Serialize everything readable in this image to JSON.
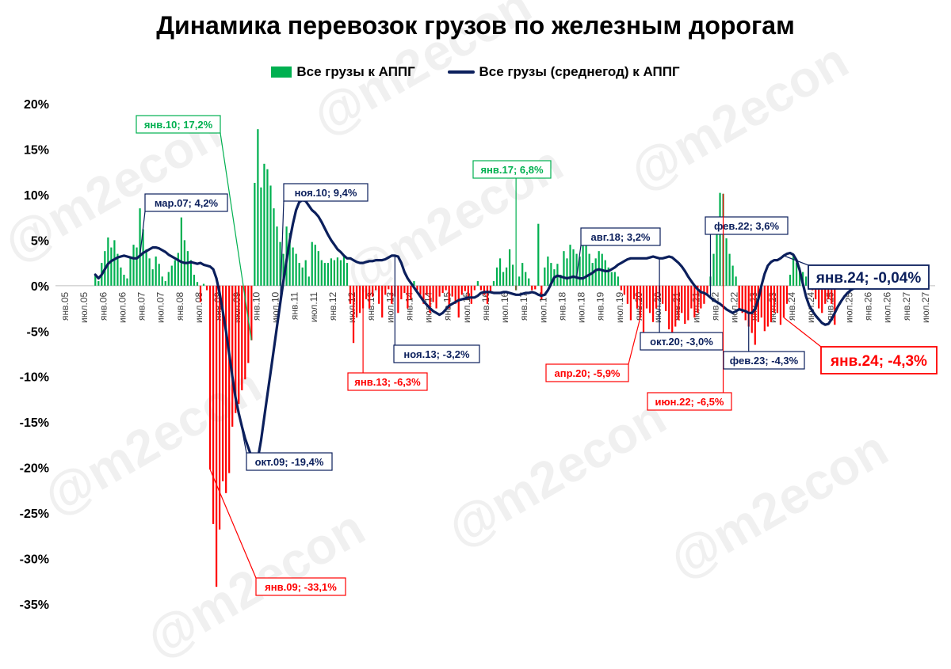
{
  "chart_data": {
    "type": "bar",
    "title": "Динамика перевозок грузов по железным дорогам",
    "legend": [
      "Все грузы к АППГ",
      "Все грузы (среднегод) к АППГ"
    ],
    "legend_position": "top",
    "grid": false,
    "ylim": [
      -35,
      20
    ],
    "ylabels": [
      "20%",
      "15%",
      "10%",
      "5%",
      "0%",
      "-5%",
      "-10%",
      "-15%",
      "-20%",
      "-25%",
      "-30%",
      "-35%"
    ],
    "xlabels": [
      "янв.05",
      "июл.05",
      "янв.06",
      "июл.06",
      "янв.07",
      "июл.07",
      "янв.08",
      "июл.08",
      "янв.09",
      "июл.09",
      "янв.10",
      "июл.10",
      "янв.11",
      "июл.11",
      "янв.12",
      "июл.12",
      "янв.13",
      "июл.13",
      "янв.14",
      "июл.14",
      "янв.15",
      "июл.15",
      "янв.16",
      "июл.16",
      "янв.17",
      "июл.17",
      "янв.18",
      "июл.18",
      "янв.19",
      "июл.19",
      "янв.20",
      "июл.20",
      "янв.21",
      "июл.21",
      "янв.22",
      "июл.22",
      "янв.23",
      "июл.23",
      "янв.24",
      "июл.24",
      "янв.25",
      "июл.25",
      "янв.26",
      "июл.26",
      "янв.27",
      "июл.27"
    ],
    "x_start": "2006-01",
    "series": [
      {
        "name": "Все грузы к АППГ",
        "type": "bar",
        "positive_color": "#00b050",
        "negative_color": "#ff0000",
        "values": [
          1.2,
          0.5,
          2.5,
          3.8,
          5.3,
          4.2,
          5.0,
          3.5,
          2.0,
          1.2,
          0.8,
          3.0,
          4.5,
          4.2,
          8.5,
          6.2,
          4.0,
          3.0,
          1.8,
          3.2,
          2.4,
          1.0,
          0.5,
          1.5,
          2.2,
          2.8,
          3.6,
          7.5,
          5.0,
          3.8,
          2.8,
          1.2,
          0.4,
          -1.8,
          0.2,
          -0.5,
          -20.2,
          -26.2,
          -33.1,
          -26.8,
          -21.5,
          -22.8,
          -20.6,
          -15.5,
          -14.0,
          -13.0,
          -11.5,
          -10.3,
          -8.5,
          -6.0,
          11.3,
          17.2,
          10.8,
          13.4,
          12.8,
          11.0,
          8.5,
          6.5,
          4.8,
          3.5,
          6.5,
          5.8,
          4.2,
          3.5,
          2.5,
          2.0,
          2.8,
          1.0,
          4.8,
          4.5,
          3.8,
          2.8,
          2.5,
          2.5,
          3.0,
          2.8,
          3.1,
          2.8,
          3.3,
          2.5,
          -2.0,
          -6.3,
          -3.5,
          -3.0,
          -2.5,
          -1.5,
          -2.5,
          -1.2,
          -0.5,
          -2.0,
          -3.5,
          -1.0,
          -0.4,
          -2.0,
          -1.2,
          -3.0,
          -1.5,
          -0.8,
          -2.5,
          -1.5,
          0.5,
          -0.5,
          -1.0,
          -2.0,
          -1.0,
          -3.0,
          -1.8,
          -2.5,
          -1.2,
          -0.8,
          -0.5,
          -2.5,
          -1.2,
          -2.0,
          -3.5,
          -1.0,
          -0.6,
          -1.5,
          -2.0,
          -0.5,
          0.5,
          -0.5,
          -1.0,
          -2.0,
          -0.6,
          0.5,
          2.0,
          3.0,
          1.5,
          2.0,
          4.0,
          2.3,
          -0.5,
          1.0,
          2.5,
          1.5,
          0.8,
          -0.5,
          -0.4,
          6.8,
          -1.5,
          2.0,
          3.2,
          2.5,
          1.8,
          2.4,
          1.2,
          3.8,
          3.0,
          4.5,
          4.0,
          3.5,
          3.2,
          4.8,
          4.5,
          3.5,
          2.5,
          3.0,
          3.8,
          3.5,
          2.8,
          2.0,
          1.5,
          1.5,
          1.0,
          -0.5,
          -1.0,
          -2.0,
          -3.8,
          -1.5,
          -2.5,
          -3.5,
          -5.1,
          -2.5,
          -3.0,
          -4.0,
          -2.5,
          -1.5,
          -2.0,
          -2.8,
          -4.8,
          -5.9,
          -4.5,
          -3.8,
          -3.0,
          -4.2,
          -3.8,
          -2.5,
          -3.5,
          -3.0,
          -2.5,
          -2.0,
          -1.0,
          1.0,
          3.5,
          6.8,
          10.2,
          10.1,
          5.2,
          3.5,
          2.2,
          1.0,
          -2.5,
          -3.0,
          -3.8,
          -4.5,
          -5.2,
          -6.5,
          -4.0,
          -3.5,
          -5.0,
          -4.5,
          -4.0,
          -3.0,
          -3.0,
          -4.3,
          -3.5,
          -2.0,
          1.2,
          3.3,
          2.5,
          2.0,
          1.5,
          1.0,
          0.3,
          -0.5,
          -1.5,
          -2.5,
          -3.0,
          -2.0,
          -1.5,
          -2.0,
          -4.3
        ]
      },
      {
        "name": "Все грузы (среднегод) к АППГ",
        "type": "line",
        "color": "#0b1f5c",
        "values": [
          1.2,
          0.8,
          1.2,
          1.8,
          2.4,
          2.7,
          2.9,
          3.1,
          3.2,
          3.3,
          3.2,
          3.1,
          3.0,
          3.0,
          3.3,
          3.6,
          3.8,
          4.0,
          4.2,
          4.2,
          4.1,
          3.9,
          3.7,
          3.4,
          3.2,
          3.0,
          2.8,
          2.6,
          2.5,
          2.5,
          2.6,
          2.5,
          2.4,
          2.5,
          2.3,
          2.2,
          2.1,
          1.8,
          0.8,
          -0.8,
          -2.8,
          -5.0,
          -7.5,
          -10.0,
          -12.3,
          -14.0,
          -15.5,
          -16.8,
          -17.8,
          -18.8,
          -19.4,
          -19.0,
          -17.0,
          -14.5,
          -12.0,
          -9.5,
          -7.0,
          -4.5,
          -2.0,
          0.5,
          2.8,
          5.0,
          6.8,
          8.3,
          9.2,
          9.4,
          9.3,
          8.8,
          8.3,
          8.0,
          7.6,
          7.0,
          6.3,
          5.6,
          5.0,
          4.5,
          4.0,
          3.7,
          3.3,
          3.0,
          3.0,
          2.8,
          2.6,
          2.5,
          2.5,
          2.6,
          2.7,
          2.7,
          2.8,
          2.8,
          2.8,
          2.9,
          3.1,
          3.3,
          3.3,
          3.2,
          2.5,
          1.5,
          0.8,
          0.3,
          -0.2,
          -0.7,
          -1.2,
          -1.7,
          -2.1,
          -2.5,
          -2.8,
          -3.0,
          -3.2,
          -3.0,
          -2.6,
          -2.2,
          -2.0,
          -1.8,
          -1.6,
          -1.5,
          -1.4,
          -1.3,
          -1.3,
          -1.3,
          -1.1,
          -0.8,
          -0.7,
          -0.7,
          -0.7,
          -0.8,
          -0.8,
          -0.8,
          -0.7,
          -0.7,
          -0.8,
          -0.9,
          -1.0,
          -1.0,
          -0.9,
          -0.8,
          -0.8,
          -0.7,
          -0.8,
          -1.0,
          -1.1,
          -1.0,
          -0.5,
          0.2,
          0.9,
          1.1,
          1.0,
          0.9,
          0.8,
          0.9,
          1.0,
          0.9,
          0.8,
          0.8,
          1.0,
          1.2,
          1.4,
          1.7,
          1.8,
          1.7,
          1.6,
          1.6,
          1.8,
          2.0,
          2.3,
          2.5,
          2.7,
          2.9,
          3.0,
          3.0,
          3.0,
          3.0,
          3.0,
          3.0,
          3.1,
          3.2,
          3.1,
          3.0,
          3.0,
          3.1,
          3.2,
          3.1,
          2.8,
          2.5,
          2.1,
          1.6,
          1.0,
          0.5,
          0.0,
          -0.4,
          -0.7,
          -0.8,
          -1.0,
          -1.3,
          -1.6,
          -1.8,
          -2.0,
          -2.3,
          -2.6,
          -2.8,
          -3.0,
          -2.8,
          -2.6,
          -2.7,
          -2.8,
          -3.0,
          -3.0,
          -2.6,
          -1.5,
          0.0,
          1.3,
          2.2,
          2.6,
          2.8,
          2.8,
          3.0,
          3.3,
          3.5,
          3.6,
          3.4,
          2.8,
          1.7,
          0.2,
          -1.2,
          -2.2,
          -2.8,
          -3.3,
          -3.7,
          -4.1,
          -4.3,
          -4.2,
          -3.7,
          -3.0,
          -2.3,
          -1.7,
          -1.2,
          -0.8,
          -0.5,
          -0.3,
          -0.2,
          -0.1,
          0.0,
          0.0,
          -0.04
        ]
      }
    ],
    "annotations": [
      {
        "text": "янв.10; 17,2%",
        "series": 0,
        "index": 49,
        "color": "#00b050"
      },
      {
        "text": "мар.07; 4,2%",
        "series": 1,
        "index": 14,
        "color": "#0b1f5c"
      },
      {
        "text": "ноя.10; 9,4%",
        "series": 1,
        "index": 58,
        "color": "#0b1f5c"
      },
      {
        "text": "окт.09; -19,4%",
        "series": 1,
        "index": 45,
        "color": "#0b1f5c"
      },
      {
        "text": "янв.09; -33,1%",
        "series": 0,
        "index": 36,
        "color": "#ff0000"
      },
      {
        "text": "янв.13; -6,3%",
        "series": 0,
        "index": 84,
        "color": "#ff0000"
      },
      {
        "text": "ноя.13; -3,2%",
        "series": 1,
        "index": 94,
        "color": "#0b1f5c"
      },
      {
        "text": "янв.17; 6,8%",
        "series": 0,
        "index": 132,
        "color": "#00b050"
      },
      {
        "text": "авг.18; 3,2%",
        "series": 1,
        "index": 151,
        "color": "#0b1f5c"
      },
      {
        "text": "апр.20; -5,9%",
        "series": 0,
        "index": 171,
        "color": "#ff0000"
      },
      {
        "text": "окт.20; -3,0%",
        "series": 1,
        "index": 177,
        "color": "#0b1f5c"
      },
      {
        "text": "фев.22; 3,6%",
        "series": 1,
        "index": 193,
        "color": "#0b1f5c"
      },
      {
        "text": "июн.22; -6,5%",
        "series": 0,
        "index": 197,
        "color": "#ff0000"
      },
      {
        "text": "фев.23; -4,3%",
        "series": 1,
        "index": 205,
        "color": "#0b1f5c"
      },
      {
        "text": "янв.24; -0,04%",
        "series": 1,
        "index": 216,
        "color": "#0b1f5c",
        "large": true
      },
      {
        "text": "янв.24; -4,3%",
        "series": 0,
        "index": 216,
        "color": "#ff0000",
        "large": true
      }
    ],
    "watermark": "@m2econ"
  }
}
